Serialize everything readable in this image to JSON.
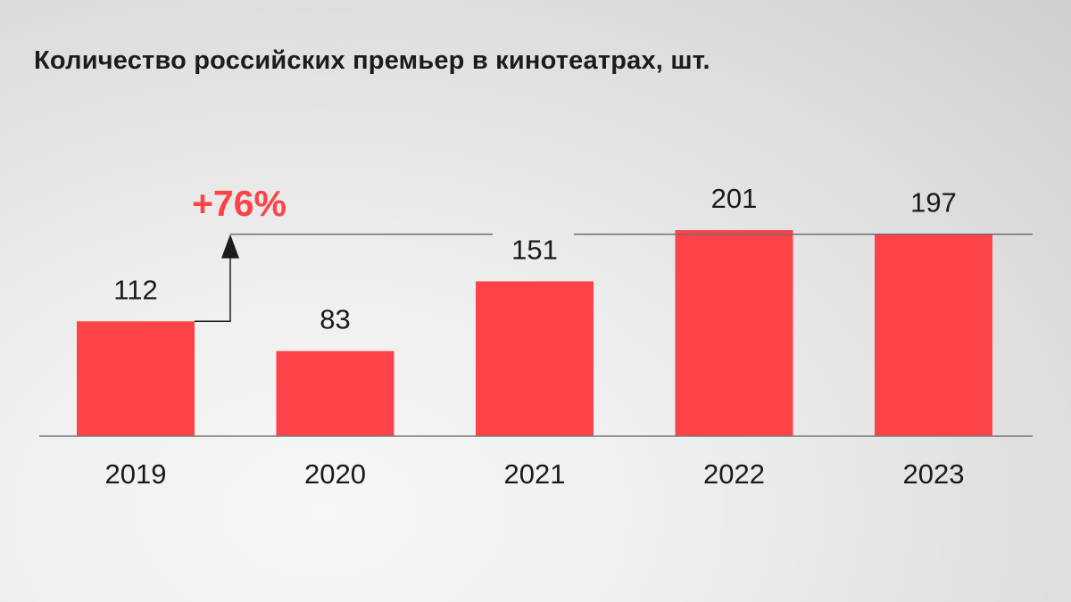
{
  "colors": {
    "bar": "#fd4347",
    "annotation": "#fd4347",
    "axis": "#7a7a7a",
    "reference_line": "#6e6e6e",
    "arrow": "#1c1c1c"
  },
  "chart_data": {
    "type": "bar",
    "title": "Количество российских премьер в кинотеатрах, шт.",
    "xlabel": "",
    "ylabel": "",
    "categories": [
      "2019",
      "2020",
      "2021",
      "2022",
      "2023"
    ],
    "values": [
      112,
      83,
      151,
      201,
      197
    ],
    "data_labels": [
      "112",
      "83",
      "151",
      "201",
      "197"
    ],
    "ylim": [
      0,
      201
    ],
    "grid": false,
    "legend": "none",
    "annotation": {
      "text": "+76%",
      "from_category": "2019",
      "to_value": 197
    }
  }
}
